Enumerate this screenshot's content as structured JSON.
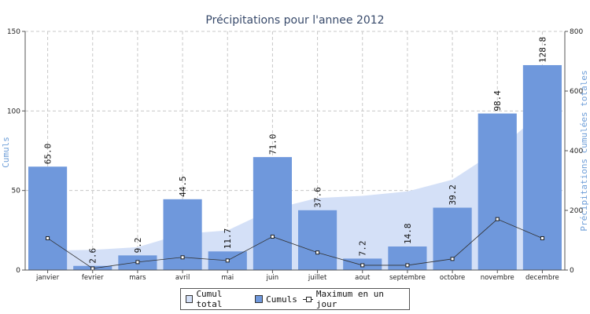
{
  "chart_data": {
    "type": "bar",
    "title": "Précipitations pour l'annee 2012",
    "ylabel": "Cumuls",
    "y2label": "Précipitations cumulées totales",
    "ylim": [
      0,
      150
    ],
    "y2lim": [
      0,
      800
    ],
    "yticks": [
      0,
      50,
      100,
      150
    ],
    "y2ticks": [
      0,
      200,
      400,
      600,
      800
    ],
    "grid": true,
    "legend_position": "bottom",
    "categories": [
      "janvier",
      "fevrier",
      "mars",
      "avril",
      "mai",
      "juin",
      "juillet",
      "aout",
      "septembre",
      "octobre",
      "novembre",
      "decembre"
    ],
    "series": [
      {
        "name": "Cumul total",
        "kind": "area",
        "axis": "right",
        "values": [
          65.0,
          67.6,
          76.8,
          121.3,
          133.0,
          204.0,
          241.6,
          248.8,
          263.6,
          302.8,
          401.2,
          530.0
        ],
        "color": "#d4e0f7"
      },
      {
        "name": "Cumuls",
        "kind": "bar",
        "axis": "left",
        "values": [
          65.0,
          2.6,
          9.2,
          44.5,
          11.7,
          71.0,
          37.6,
          7.2,
          14.8,
          39.2,
          98.4,
          128.8
        ],
        "labels": [
          "65.0",
          "2.6",
          "9.2",
          "44.5",
          "11.7",
          "71.0",
          "37.6",
          "7.2",
          "14.8",
          "39.2",
          "98.4",
          "128.8"
        ],
        "color": "#6f98dc"
      },
      {
        "name": "Maximum en un jour",
        "kind": "line",
        "axis": "left",
        "values": [
          20,
          1,
          5,
          8,
          6,
          21,
          11,
          3,
          3,
          7,
          32,
          20
        ],
        "color": "#333333"
      }
    ]
  }
}
